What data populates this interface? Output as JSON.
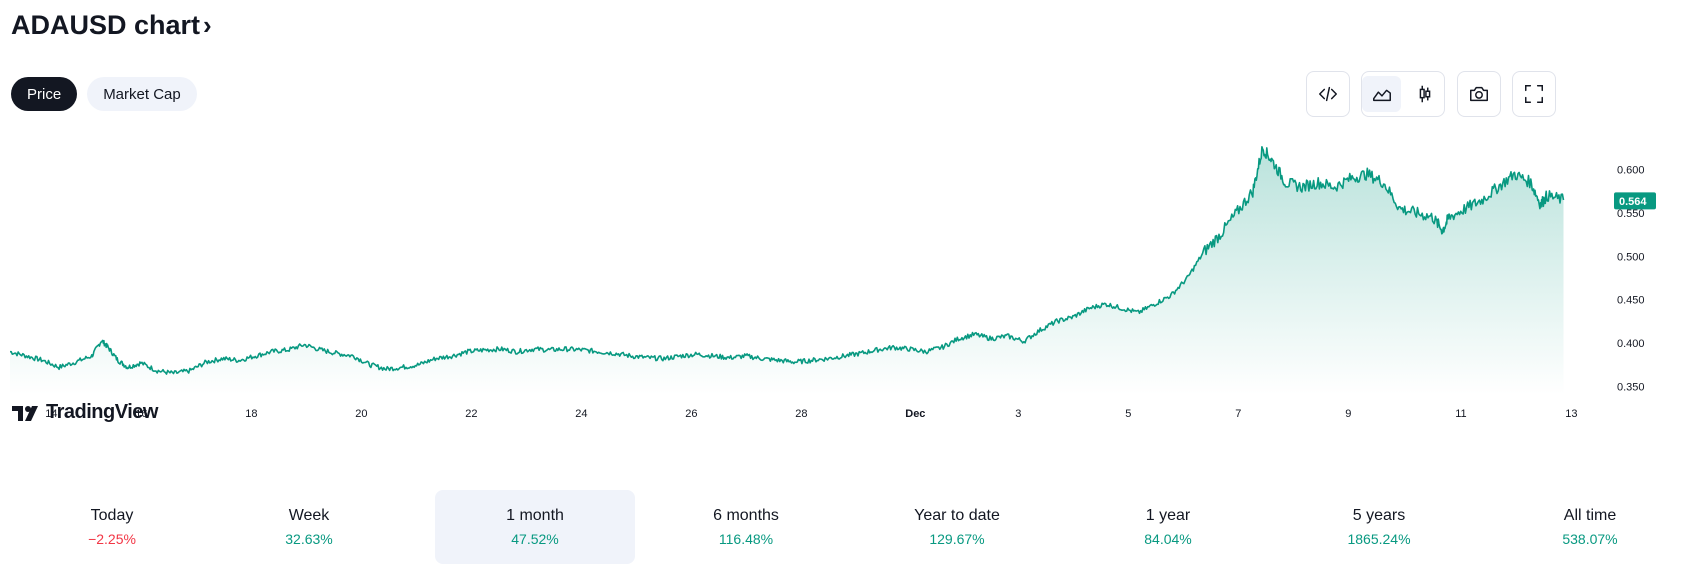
{
  "header": {
    "title": "ADAUSD chart",
    "chevron": "›"
  },
  "tabs": [
    {
      "label": "Price",
      "active": true
    },
    {
      "label": "Market Cap",
      "active": false
    }
  ],
  "toolbar": {
    "embed_icon": "code-icon",
    "line_chart_icon": "area-chart-icon",
    "candle_icon": "candlestick-icon",
    "snapshot_icon": "camera-icon",
    "fullscreen_icon": "fullscreen-icon"
  },
  "logo": {
    "text": "TradingView"
  },
  "colors": {
    "line": "#089981",
    "negative": "#f23645",
    "text": "#131722"
  },
  "chart_data": {
    "type": "area",
    "series": [
      {
        "points": [
          [
            0,
            0.39
          ],
          [
            0.5,
            0.385
          ],
          [
            1,
            0.38
          ],
          [
            1.5,
            0.372
          ],
          [
            2,
            0.378
          ],
          [
            2.5,
            0.385
          ],
          [
            2.8,
            0.403
          ],
          [
            3,
            0.395
          ],
          [
            3.3,
            0.38
          ],
          [
            3.6,
            0.372
          ],
          [
            4,
            0.377
          ],
          [
            4.5,
            0.368
          ],
          [
            5,
            0.365
          ],
          [
            5.5,
            0.368
          ],
          [
            6,
            0.378
          ],
          [
            6.5,
            0.382
          ],
          [
            7,
            0.38
          ],
          [
            7.5,
            0.385
          ],
          [
            8,
            0.39
          ],
          [
            8.5,
            0.392
          ],
          [
            9,
            0.398
          ],
          [
            9.5,
            0.392
          ],
          [
            10,
            0.388
          ],
          [
            10.5,
            0.385
          ],
          [
            11,
            0.375
          ],
          [
            11.5,
            0.37
          ],
          [
            12,
            0.372
          ],
          [
            12.5,
            0.375
          ],
          [
            13,
            0.382
          ],
          [
            13.5,
            0.385
          ],
          [
            14,
            0.39
          ],
          [
            14.5,
            0.392
          ],
          [
            15,
            0.393
          ],
          [
            15.5,
            0.39
          ],
          [
            16,
            0.393
          ],
          [
            16.5,
            0.392
          ],
          [
            17,
            0.393
          ],
          [
            17.5,
            0.392
          ],
          [
            18,
            0.39
          ],
          [
            18.5,
            0.388
          ],
          [
            19,
            0.385
          ],
          [
            19.5,
            0.383
          ],
          [
            20,
            0.382
          ],
          [
            20.5,
            0.385
          ],
          [
            21,
            0.387
          ],
          [
            21.5,
            0.385
          ],
          [
            22,
            0.383
          ],
          [
            22.5,
            0.385
          ],
          [
            23,
            0.382
          ],
          [
            23.5,
            0.38
          ],
          [
            24,
            0.378
          ],
          [
            24.5,
            0.38
          ],
          [
            25,
            0.382
          ],
          [
            25.5,
            0.385
          ],
          [
            26,
            0.388
          ],
          [
            26.5,
            0.392
          ],
          [
            27,
            0.395
          ],
          [
            27.5,
            0.393
          ],
          [
            28,
            0.39
          ],
          [
            28.5,
            0.395
          ],
          [
            29,
            0.405
          ],
          [
            29.5,
            0.41
          ],
          [
            30,
            0.405
          ],
          [
            30.5,
            0.408
          ],
          [
            31,
            0.402
          ],
          [
            31.5,
            0.415
          ],
          [
            32,
            0.425
          ],
          [
            32.5,
            0.43
          ],
          [
            33,
            0.44
          ],
          [
            33.5,
            0.445
          ],
          [
            34,
            0.44
          ],
          [
            34.5,
            0.435
          ],
          [
            35,
            0.445
          ],
          [
            35.5,
            0.455
          ],
          [
            36,
            0.475
          ],
          [
            36.5,
            0.505
          ],
          [
            37,
            0.525
          ],
          [
            37.5,
            0.55
          ],
          [
            38,
            0.575
          ],
          [
            38.3,
            0.625
          ],
          [
            38.6,
            0.61
          ],
          [
            39,
            0.585
          ],
          [
            39.5,
            0.58
          ],
          [
            40,
            0.585
          ],
          [
            40.5,
            0.58
          ],
          [
            41,
            0.59
          ],
          [
            41.5,
            0.595
          ],
          [
            42,
            0.585
          ],
          [
            42.5,
            0.555
          ],
          [
            43,
            0.55
          ],
          [
            43.5,
            0.545
          ],
          [
            43.8,
            0.53
          ],
          [
            44,
            0.545
          ],
          [
            44.5,
            0.555
          ],
          [
            45,
            0.565
          ],
          [
            45.5,
            0.58
          ],
          [
            46,
            0.595
          ],
          [
            46.5,
            0.585
          ],
          [
            46.8,
            0.56
          ],
          [
            47,
            0.57
          ],
          [
            47.5,
            0.565
          ]
        ]
      }
    ],
    "x_ticks": [
      {
        "label": "14",
        "pos": 0.7
      },
      {
        "label": "16",
        "pos": 4.7
      },
      {
        "label": "18",
        "pos": 8.7
      },
      {
        "label": "20",
        "pos": 12.7
      },
      {
        "label": "22",
        "pos": 16.7
      },
      {
        "label": "24",
        "pos": 20.7
      },
      {
        "label": "26",
        "pos": 24.7
      },
      {
        "label": "28",
        "pos": 28.7
      },
      {
        "label": "Dec",
        "pos": 32.7,
        "bold": true
      },
      {
        "label": "3",
        "pos": 36.7
      },
      {
        "label": "5",
        "pos": 40.7
      },
      {
        "label": "7",
        "pos": 44.7
      },
      {
        "label": "9",
        "pos": 48.7
      },
      {
        "label": "11",
        "pos": 52.7
      },
      {
        "label": "13",
        "pos": 56.7
      }
    ],
    "y_ticks": [
      "0.600",
      "0.550",
      "0.500",
      "0.450",
      "0.400",
      "0.350"
    ],
    "ylim": [
      0.34,
      0.64
    ],
    "current_price": {
      "value": 0.564,
      "label": "0.564"
    }
  },
  "stats": [
    {
      "label": "Today",
      "value": "−2.25%",
      "trend": "neg",
      "selected": false
    },
    {
      "label": "Week",
      "value": "32.63%",
      "trend": "pos",
      "selected": false
    },
    {
      "label": "1 month",
      "value": "47.52%",
      "trend": "pos",
      "selected": true
    },
    {
      "label": "6 months",
      "value": "116.48%",
      "trend": "pos",
      "selected": false
    },
    {
      "label": "Year to date",
      "value": "129.67%",
      "trend": "pos",
      "selected": false
    },
    {
      "label": "1 year",
      "value": "84.04%",
      "trend": "pos",
      "selected": false
    },
    {
      "label": "5 years",
      "value": "1865.24%",
      "trend": "pos",
      "selected": false
    },
    {
      "label": "All time",
      "value": "538.07%",
      "trend": "pos",
      "selected": false
    }
  ]
}
